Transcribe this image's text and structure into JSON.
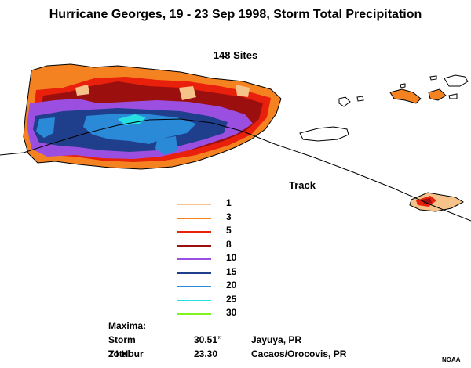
{
  "title": "Hurricane Georges, 19 - 23 Sep 1998, Storm Total Precipitation",
  "subtitle": "148 Sites",
  "track_label": "Track",
  "legend": [
    {
      "label": "1",
      "color": "#f5c38a"
    },
    {
      "label": "3",
      "color": "#f58220"
    },
    {
      "label": "5",
      "color": "#e8200c"
    },
    {
      "label": "8",
      "color": "#9b0f0f"
    },
    {
      "label": "10",
      "color": "#9b4fe0"
    },
    {
      "label": "15",
      "color": "#1f3f8c"
    },
    {
      "label": "20",
      "color": "#2a8ad8"
    },
    {
      "label": "25",
      "color": "#26e0e0"
    },
    {
      "label": "30",
      "color": "#7ff51f"
    }
  ],
  "maxima": {
    "heading": "Maxima:",
    "rows": [
      {
        "label": "Storm Total",
        "value": "30.51”",
        "place": "Jayuya, PR"
      },
      {
        "label": "24 Hour",
        "value": "23.30",
        "place": "Cacaos/Orocovis, PR"
      }
    ]
  },
  "credit": "NOAA"
}
